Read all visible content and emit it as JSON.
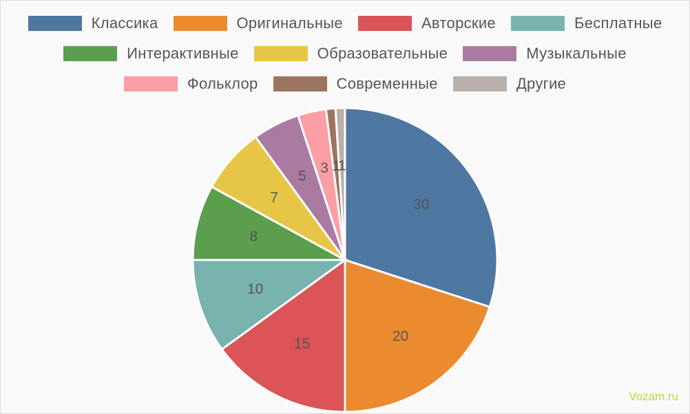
{
  "chart_data": {
    "type": "pie",
    "categories": [
      "Классика",
      "Оригинальные",
      "Авторские",
      "Бесплатные",
      "Интерактивные",
      "Образовательные",
      "Музыкальные",
      "Фольклор",
      "Современные",
      "Другие"
    ],
    "values": [
      30,
      20,
      15,
      10,
      8,
      7,
      5,
      3,
      1,
      1
    ],
    "colors": [
      "#4e77a1",
      "#ec8a2f",
      "#db5457",
      "#78b3ae",
      "#5a9e4e",
      "#e7c647",
      "#ab7aa1",
      "#fb9ea5",
      "#9c7560",
      "#b8b0ab"
    ],
    "legend_position": "top"
  },
  "watermark": "Vozam.ru"
}
